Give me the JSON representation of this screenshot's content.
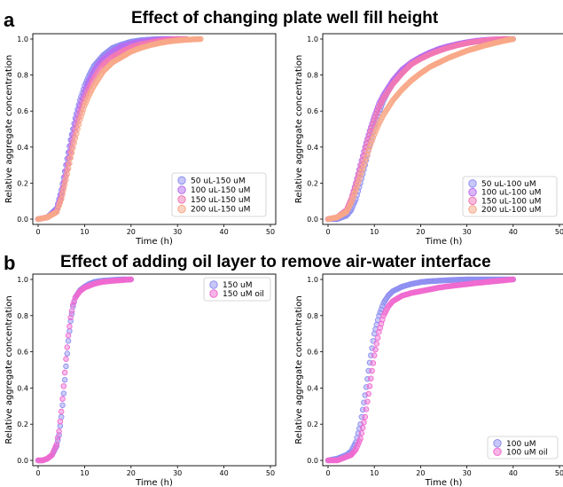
{
  "panels": {
    "a": {
      "letter": "a",
      "title": "Effect of changing plate well fill height"
    },
    "b": {
      "letter": "b",
      "title": "Effect of adding oil layer to remove air-water interface"
    }
  },
  "chart_data": [
    {
      "type": "scatter",
      "panel": "a-left",
      "xlabel": "Time (h)",
      "ylabel": "Relative aggregate concentration",
      "xlim": [
        0,
        50
      ],
      "ylim": [
        0,
        1.0
      ],
      "xticks": [
        0,
        10,
        20,
        30,
        40,
        50
      ],
      "yticks": [
        0.0,
        0.2,
        0.4,
        0.6,
        0.8,
        1.0
      ],
      "legend_position": "bottom-right",
      "series": [
        {
          "name": "50 uL-150 uM",
          "color": "#8f8ff2",
          "x": [
            0,
            2,
            4,
            5,
            6,
            7,
            8,
            9,
            10,
            11,
            12,
            13,
            14,
            16,
            18,
            20,
            22,
            24,
            26,
            28
          ],
          "y": [
            0.0,
            0.01,
            0.06,
            0.16,
            0.3,
            0.44,
            0.56,
            0.66,
            0.74,
            0.8,
            0.85,
            0.88,
            0.91,
            0.95,
            0.97,
            0.985,
            0.993,
            0.997,
            1.0,
            1.0
          ]
        },
        {
          "name": "100 uL-150 uM",
          "color": "#b86ef0",
          "x": [
            0,
            2,
            4,
            5,
            6,
            7,
            8,
            9,
            10,
            11,
            12,
            13,
            14,
            16,
            18,
            20,
            22,
            24,
            26,
            28,
            30
          ],
          "y": [
            0.0,
            0.01,
            0.05,
            0.14,
            0.27,
            0.41,
            0.53,
            0.63,
            0.71,
            0.77,
            0.82,
            0.86,
            0.89,
            0.93,
            0.96,
            0.975,
            0.985,
            0.992,
            0.996,
            1.0,
            1.0
          ]
        },
        {
          "name": "150 uL-150 uM",
          "color": "#f278b4",
          "x": [
            0,
            2,
            4,
            5,
            6,
            7,
            8,
            9,
            10,
            11,
            12,
            13,
            14,
            16,
            18,
            20,
            22,
            24,
            26,
            28,
            30,
            32
          ],
          "y": [
            0.0,
            0.01,
            0.04,
            0.12,
            0.24,
            0.37,
            0.49,
            0.59,
            0.67,
            0.73,
            0.78,
            0.82,
            0.86,
            0.9,
            0.93,
            0.955,
            0.97,
            0.98,
            0.99,
            0.995,
            1.0,
            1.0
          ]
        },
        {
          "name": "200 uL-150 uM",
          "color": "#f8a888",
          "x": [
            0,
            2,
            4,
            5,
            6,
            7,
            8,
            9,
            10,
            11,
            12,
            13,
            14,
            16,
            18,
            20,
            22,
            24,
            26,
            28,
            30,
            32,
            34,
            35
          ],
          "y": [
            0.0,
            0.01,
            0.04,
            0.11,
            0.22,
            0.34,
            0.45,
            0.55,
            0.63,
            0.69,
            0.74,
            0.78,
            0.82,
            0.87,
            0.9,
            0.93,
            0.95,
            0.965,
            0.977,
            0.986,
            0.992,
            0.996,
            0.999,
            1.0
          ]
        }
      ]
    },
    {
      "type": "scatter",
      "panel": "a-right",
      "xlabel": "Time (h)",
      "ylabel": "Relative aggregate concentration",
      "xlim": [
        0,
        50
      ],
      "ylim": [
        0,
        1.0
      ],
      "xticks": [
        0,
        10,
        20,
        30,
        40,
        50
      ],
      "yticks": [
        0.0,
        0.2,
        0.4,
        0.6,
        0.8,
        1.0
      ],
      "legend_position": "bottom-right",
      "series": [
        {
          "name": "50 uL-100 uM",
          "color": "#8f8ff2",
          "x": [
            0,
            2,
            4,
            5,
            6,
            7,
            8,
            9,
            10,
            11,
            12,
            14,
            16,
            18,
            20,
            22,
            24,
            26,
            28,
            30,
            32,
            34,
            36,
            38,
            40
          ],
          "y": [
            0.0,
            0.0,
            0.02,
            0.05,
            0.11,
            0.2,
            0.3,
            0.41,
            0.51,
            0.59,
            0.66,
            0.76,
            0.82,
            0.87,
            0.9,
            0.925,
            0.945,
            0.96,
            0.97,
            0.98,
            0.986,
            0.991,
            0.995,
            0.998,
            1.0
          ]
        },
        {
          "name": "100 uL-100 uM",
          "color": "#b86ef0",
          "x": [
            0,
            2,
            4,
            5,
            6,
            7,
            8,
            9,
            10,
            11,
            12,
            14,
            16,
            18,
            20,
            22,
            24,
            26,
            28,
            30,
            32,
            34,
            36,
            38
          ],
          "y": [
            0.0,
            0.01,
            0.05,
            0.11,
            0.2,
            0.3,
            0.4,
            0.49,
            0.57,
            0.64,
            0.69,
            0.77,
            0.83,
            0.87,
            0.9,
            0.925,
            0.945,
            0.96,
            0.972,
            0.982,
            0.99,
            0.995,
            0.998,
            1.0
          ]
        },
        {
          "name": "150 uL-100 uM",
          "color": "#f278b4",
          "x": [
            0,
            2,
            4,
            5,
            6,
            7,
            8,
            9,
            10,
            11,
            12,
            14,
            16,
            18,
            20,
            22,
            24,
            26,
            28,
            30,
            32,
            34,
            36,
            38,
            39
          ],
          "y": [
            0.0,
            0.01,
            0.05,
            0.11,
            0.19,
            0.28,
            0.38,
            0.47,
            0.55,
            0.62,
            0.67,
            0.75,
            0.81,
            0.86,
            0.89,
            0.915,
            0.935,
            0.952,
            0.966,
            0.977,
            0.986,
            0.992,
            0.997,
            1.0,
            1.0
          ]
        },
        {
          "name": "200 uL-100 uM",
          "color": "#f8a888",
          "x": [
            0,
            2,
            4,
            5,
            6,
            7,
            8,
            9,
            10,
            11,
            12,
            14,
            16,
            18,
            20,
            22,
            24,
            26,
            28,
            30,
            32,
            34,
            36,
            38,
            40
          ],
          "y": [
            0.0,
            0.01,
            0.04,
            0.09,
            0.16,
            0.24,
            0.32,
            0.4,
            0.47,
            0.53,
            0.58,
            0.66,
            0.72,
            0.77,
            0.81,
            0.845,
            0.87,
            0.895,
            0.915,
            0.935,
            0.95,
            0.965,
            0.978,
            0.99,
            1.0
          ]
        }
      ]
    },
    {
      "type": "scatter",
      "panel": "b-left",
      "xlabel": "Time (h)",
      "ylabel": "Relative aggregate concentration",
      "xlim": [
        0,
        50
      ],
      "ylim": [
        0,
        1.0
      ],
      "xticks": [
        0,
        10,
        20,
        30,
        40,
        50
      ],
      "yticks": [
        0.0,
        0.2,
        0.4,
        0.6,
        0.8,
        1.0
      ],
      "legend_position": "top-right",
      "series": [
        {
          "name": "150 uM",
          "color": "#8f8ff2",
          "x": [
            0,
            1,
            2,
            3,
            4,
            4.5,
            5,
            5.5,
            6,
            6.5,
            7,
            7.5,
            8,
            9,
            10,
            11,
            12,
            13,
            14,
            16,
            18,
            20
          ],
          "y": [
            0.0,
            0.0,
            0.01,
            0.03,
            0.08,
            0.14,
            0.24,
            0.37,
            0.52,
            0.66,
            0.77,
            0.85,
            0.9,
            0.94,
            0.96,
            0.975,
            0.985,
            0.99,
            0.993,
            0.997,
            1.0,
            1.0
          ]
        },
        {
          "name": "150 uM oil",
          "color": "#f06ad0",
          "x": [
            0,
            1,
            2,
            3,
            4,
            4.5,
            5,
            5.5,
            6,
            6.5,
            7,
            7.5,
            8,
            9,
            10,
            11,
            12,
            13,
            14,
            16,
            18,
            20
          ],
          "y": [
            0.0,
            0.0,
            0.01,
            0.03,
            0.09,
            0.16,
            0.27,
            0.41,
            0.56,
            0.69,
            0.79,
            0.86,
            0.9,
            0.935,
            0.955,
            0.965,
            0.975,
            0.982,
            0.987,
            0.992,
            0.996,
            1.0
          ]
        }
      ]
    },
    {
      "type": "scatter",
      "panel": "b-right",
      "xlabel": "Time (h)",
      "ylabel": "Relative aggregate concentration",
      "xlim": [
        0,
        50
      ],
      "ylim": [
        0,
        1.0
      ],
      "xticks": [
        0,
        10,
        20,
        30,
        40,
        50
      ],
      "yticks": [
        0.0,
        0.2,
        0.4,
        0.6,
        0.8,
        1.0
      ],
      "legend_position": "bottom-right",
      "series": [
        {
          "name": "100 uM",
          "color": "#8f8ff2",
          "x": [
            0,
            2,
            4,
            5,
            6,
            7,
            8,
            9,
            10,
            11,
            12,
            13,
            14,
            16,
            18,
            20,
            22,
            24,
            26,
            28,
            30,
            32,
            34,
            36,
            38,
            40
          ],
          "y": [
            0.0,
            0.01,
            0.03,
            0.05,
            0.1,
            0.2,
            0.36,
            0.54,
            0.7,
            0.8,
            0.87,
            0.91,
            0.935,
            0.96,
            0.975,
            0.985,
            0.99,
            0.993,
            0.996,
            0.998,
            1.0,
            1.0,
            1.0,
            1.0,
            1.0,
            1.0
          ]
        },
        {
          "name": "100 uM oil",
          "color": "#f06ad0",
          "x": [
            0,
            2,
            4,
            5,
            6,
            7,
            8,
            9,
            10,
            11,
            12,
            13,
            14,
            16,
            18,
            20,
            22,
            24,
            26,
            28,
            30,
            32,
            34,
            36,
            38,
            40
          ],
          "y": [
            0.0,
            0.0,
            0.02,
            0.03,
            0.06,
            0.12,
            0.24,
            0.41,
            0.58,
            0.71,
            0.8,
            0.85,
            0.88,
            0.91,
            0.925,
            0.935,
            0.945,
            0.955,
            0.962,
            0.968,
            0.974,
            0.98,
            0.985,
            0.99,
            0.995,
            1.0
          ]
        }
      ]
    }
  ]
}
